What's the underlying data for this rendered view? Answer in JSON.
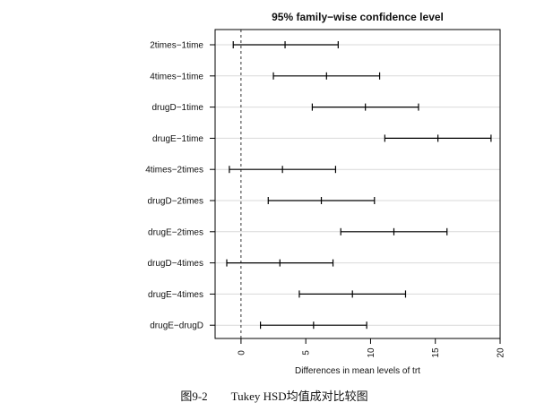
{
  "chart_data": {
    "type": "errorbar",
    "title": "95% family−wise confidence level",
    "xlabel": "Differences in mean levels of trt",
    "ylabel": "",
    "xlim": [
      -2,
      20
    ],
    "xticks": [
      0,
      5,
      10,
      15,
      20
    ],
    "grid": true,
    "reference_line": 0,
    "comparisons": [
      {
        "label": "2times−1time",
        "lwr": -0.6,
        "diff": 3.4,
        "upr": 7.5
      },
      {
        "label": "4times−1time",
        "lwr": 2.5,
        "diff": 6.6,
        "upr": 10.7
      },
      {
        "label": "drugD−1time",
        "lwr": 5.5,
        "diff": 9.6,
        "upr": 13.7
      },
      {
        "label": "drugE−1time",
        "lwr": 11.1,
        "diff": 15.2,
        "upr": 19.3
      },
      {
        "label": "4times−2times",
        "lwr": -0.9,
        "diff": 3.2,
        "upr": 7.3
      },
      {
        "label": "drugD−2times",
        "lwr": 2.1,
        "diff": 6.2,
        "upr": 10.3
      },
      {
        "label": "drugE−2times",
        "lwr": 7.7,
        "diff": 11.8,
        "upr": 15.9
      },
      {
        "label": "drugD−4times",
        "lwr": -1.1,
        "diff": 3.0,
        "upr": 7.1
      },
      {
        "label": "drugE−4times",
        "lwr": 4.5,
        "diff": 8.6,
        "upr": 12.7
      },
      {
        "label": "drugE−drugD",
        "lwr": 1.5,
        "diff": 5.6,
        "upr": 9.7
      }
    ]
  },
  "caption": "图9-2　　Tukey HSD均值成对比较图"
}
